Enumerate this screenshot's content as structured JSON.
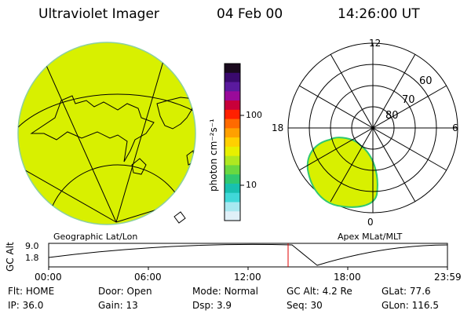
{
  "header": {
    "instrument": "Ultraviolet Imager",
    "date": "04 Feb 00",
    "time": "14:26:00 UT"
  },
  "left_panel": {
    "caption": "Geographic Lat/Lon",
    "fill_color": "#d8f000"
  },
  "colorbar": {
    "unit_label": "photon cm⁻²s⁻¹",
    "ticks": [
      "100",
      "10"
    ],
    "colors": [
      "#1a0a1e",
      "#3a0a6e",
      "#5a1a9e",
      "#9a0a9a",
      "#c8003a",
      "#ff2000",
      "#ff6a00",
      "#ffa000",
      "#ffd000",
      "#e8f000",
      "#b0e820",
      "#6ad840",
      "#30c870",
      "#18c0b0",
      "#40d8d8",
      "#a8e8f0",
      "#e0f0f8"
    ]
  },
  "right_panel": {
    "caption": "Apex MLat/MLT",
    "mlt_labels": {
      "top": "12",
      "left": "18",
      "right": "6",
      "bottom": "0"
    },
    "lat_labels": [
      "60",
      "70",
      "80"
    ],
    "fill_color": "#d8f000"
  },
  "timeline": {
    "ylabel": "GC Alt",
    "y_ticks": [
      "9.0",
      "1.8"
    ],
    "x_ticks": [
      "00:00",
      "06:00",
      "12:00",
      "18:00",
      "23:59"
    ],
    "marker_color": "#e00000"
  },
  "footer": {
    "row1": [
      {
        "label": "Flt:",
        "value": "HOME"
      },
      {
        "label": "Door:",
        "value": "Open"
      },
      {
        "label": "Mode:",
        "value": "Normal"
      },
      {
        "label": "GC Alt:",
        "value": "4.2 Re"
      },
      {
        "label": "GLat:",
        "value": "77.6"
      }
    ],
    "row2": [
      {
        "label": "IP:",
        "value": "36.0"
      },
      {
        "label": "Gain:",
        "value": "13"
      },
      {
        "label": "Dsp:",
        "value": "3.9"
      },
      {
        "label": "Seq:",
        "value": "30"
      },
      {
        "label": "GLon:",
        "value": "116.5"
      }
    ]
  }
}
